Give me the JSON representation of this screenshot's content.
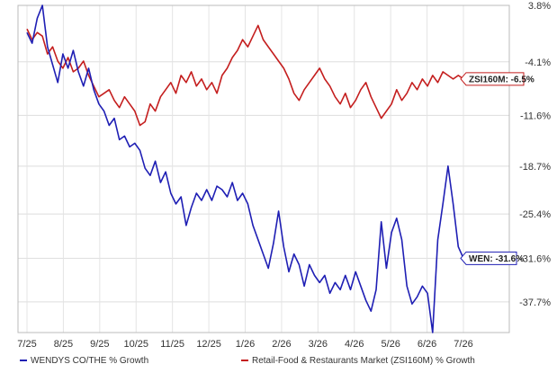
{
  "chart_data": {
    "type": "line",
    "x_ticks": [
      "7/25",
      "8/25",
      "9/25",
      "10/25",
      "11/25",
      "12/25",
      "1/26",
      "2/26",
      "3/26",
      "4/26",
      "5/26",
      "6/26",
      "7/26"
    ],
    "y_ticks": [
      "3.8%",
      "-4.1%",
      "-11.6%",
      "-18.7%",
      "-25.4%",
      "-31.6%",
      "-37.7%"
    ],
    "ylim": [
      -42,
      3.8
    ],
    "series": [
      {
        "name": "WENDYS CO/THE % Growth",
        "color": "#1f1fb4",
        "points": [
          [
            0,
            0
          ],
          [
            1,
            -1.5
          ],
          [
            2,
            2
          ],
          [
            3,
            3.8
          ],
          [
            4,
            -2
          ],
          [
            5,
            -4.5
          ],
          [
            6,
            -7
          ],
          [
            7,
            -3
          ],
          [
            8,
            -5
          ],
          [
            9,
            -2.5
          ],
          [
            10,
            -5.5
          ],
          [
            11,
            -7.5
          ],
          [
            12,
            -5
          ],
          [
            13,
            -8
          ],
          [
            14,
            -10
          ],
          [
            15,
            -11
          ],
          [
            16,
            -13
          ],
          [
            17,
            -12
          ],
          [
            18,
            -15
          ],
          [
            19,
            -14.5
          ],
          [
            20,
            -16
          ],
          [
            21,
            -15.5
          ],
          [
            22,
            -16.5
          ],
          [
            23,
            -19
          ],
          [
            24,
            -20
          ],
          [
            25,
            -18
          ],
          [
            26,
            -21
          ],
          [
            27,
            -19.5
          ],
          [
            28,
            -22.5
          ],
          [
            29,
            -24
          ],
          [
            30,
            -23
          ],
          [
            31,
            -27
          ],
          [
            32,
            -24.5
          ],
          [
            33,
            -22.5
          ],
          [
            34,
            -23.5
          ],
          [
            35,
            -22
          ],
          [
            36,
            -23.5
          ],
          [
            37,
            -21.5
          ],
          [
            38,
            -22
          ],
          [
            39,
            -23
          ],
          [
            40,
            -21
          ],
          [
            41,
            -23.5
          ],
          [
            42,
            -22.5
          ],
          [
            43,
            -24
          ],
          [
            44,
            -27
          ],
          [
            45,
            -29
          ],
          [
            46,
            -31
          ],
          [
            47,
            -33
          ],
          [
            48,
            -29.5
          ],
          [
            49,
            -25
          ],
          [
            50,
            -30
          ],
          [
            51,
            -33.5
          ],
          [
            52,
            -31
          ],
          [
            53,
            -32.5
          ],
          [
            54,
            -35.5
          ],
          [
            55,
            -32.5
          ],
          [
            56,
            -34
          ],
          [
            57,
            -35
          ],
          [
            58,
            -34
          ],
          [
            59,
            -36.5
          ],
          [
            60,
            -35
          ],
          [
            61,
            -36
          ],
          [
            62,
            -34
          ],
          [
            63,
            -36
          ],
          [
            64,
            -33.5
          ],
          [
            65,
            -35.5
          ],
          [
            66,
            -37.5
          ],
          [
            67,
            -39
          ],
          [
            68,
            -36
          ],
          [
            69,
            -26.5
          ],
          [
            70,
            -33
          ],
          [
            71,
            -28
          ],
          [
            72,
            -26
          ],
          [
            73,
            -29
          ],
          [
            74,
            -35.5
          ],
          [
            75,
            -38
          ],
          [
            76,
            -37
          ],
          [
            77,
            -35.5
          ],
          [
            78,
            -36.5
          ],
          [
            79,
            -42
          ],
          [
            80,
            -29
          ],
          [
            81,
            -24
          ],
          [
            82,
            -18.7
          ],
          [
            83,
            -24
          ],
          [
            84,
            -30
          ],
          [
            85,
            -31.6
          ]
        ]
      },
      {
        "name": "Retail-Food & Restaurants Market (ZSI160M) % Growth",
        "color": "#c41e1e",
        "points": [
          [
            0,
            0.5
          ],
          [
            1,
            -1
          ],
          [
            2,
            0
          ],
          [
            3,
            -0.5
          ],
          [
            4,
            -3
          ],
          [
            5,
            -2
          ],
          [
            6,
            -4
          ],
          [
            7,
            -5
          ],
          [
            8,
            -3.5
          ],
          [
            9,
            -5.5
          ],
          [
            10,
            -5
          ],
          [
            11,
            -4
          ],
          [
            12,
            -6
          ],
          [
            13,
            -7.5
          ],
          [
            14,
            -9
          ],
          [
            15,
            -8.5
          ],
          [
            16,
            -8
          ],
          [
            17,
            -9.5
          ],
          [
            18,
            -10.5
          ],
          [
            19,
            -9
          ],
          [
            20,
            -10
          ],
          [
            21,
            -11
          ],
          [
            22,
            -13
          ],
          [
            23,
            -12.5
          ],
          [
            24,
            -10
          ],
          [
            25,
            -11
          ],
          [
            26,
            -9
          ],
          [
            27,
            -8
          ],
          [
            28,
            -7
          ],
          [
            29,
            -8.5
          ],
          [
            30,
            -6
          ],
          [
            31,
            -7
          ],
          [
            32,
            -5.5
          ],
          [
            33,
            -7.5
          ],
          [
            34,
            -6.5
          ],
          [
            35,
            -8
          ],
          [
            36,
            -7
          ],
          [
            37,
            -8.5
          ],
          [
            38,
            -6
          ],
          [
            39,
            -5
          ],
          [
            40,
            -3.5
          ],
          [
            41,
            -2.5
          ],
          [
            42,
            -1
          ],
          [
            43,
            -2
          ],
          [
            44,
            -0.5
          ],
          [
            45,
            1
          ],
          [
            46,
            -1
          ],
          [
            47,
            -2
          ],
          [
            48,
            -3
          ],
          [
            49,
            -4
          ],
          [
            50,
            -5
          ],
          [
            51,
            -6.5
          ],
          [
            52,
            -8.5
          ],
          [
            53,
            -9.5
          ],
          [
            54,
            -8
          ],
          [
            55,
            -7
          ],
          [
            56,
            -6
          ],
          [
            57,
            -5
          ],
          [
            58,
            -6.5
          ],
          [
            59,
            -7.5
          ],
          [
            60,
            -9
          ],
          [
            61,
            -10
          ],
          [
            62,
            -8.5
          ],
          [
            63,
            -10.5
          ],
          [
            64,
            -9.5
          ],
          [
            65,
            -8
          ],
          [
            66,
            -7
          ],
          [
            67,
            -9
          ],
          [
            68,
            -10.5
          ],
          [
            69,
            -12
          ],
          [
            70,
            -11
          ],
          [
            71,
            -10
          ],
          [
            72,
            -8
          ],
          [
            73,
            -9.5
          ],
          [
            74,
            -8.5
          ],
          [
            75,
            -7
          ],
          [
            76,
            -8
          ],
          [
            77,
            -6.5
          ],
          [
            78,
            -7.5
          ],
          [
            79,
            -6
          ],
          [
            80,
            -7
          ],
          [
            81,
            -5.5
          ],
          [
            82,
            -6
          ],
          [
            83,
            -6.5
          ],
          [
            84,
            -6
          ],
          [
            85,
            -6.5
          ]
        ]
      }
    ],
    "callouts": [
      {
        "text": "ZSI160M: -6.5%",
        "color": "#c41e1e",
        "value": -6.5
      },
      {
        "text": "WEN: -31.6%",
        "color": "#1f1fb4",
        "value": -31.6
      }
    ],
    "legend": [
      {
        "text": "WENDYS CO/THE % Growth",
        "color": "#1f1fb4"
      },
      {
        "text": "Retail-Food & Restaurants Market (ZSI160M) % Growth",
        "color": "#c41e1e"
      }
    ],
    "grid": true,
    "legend_position": "bottom"
  }
}
